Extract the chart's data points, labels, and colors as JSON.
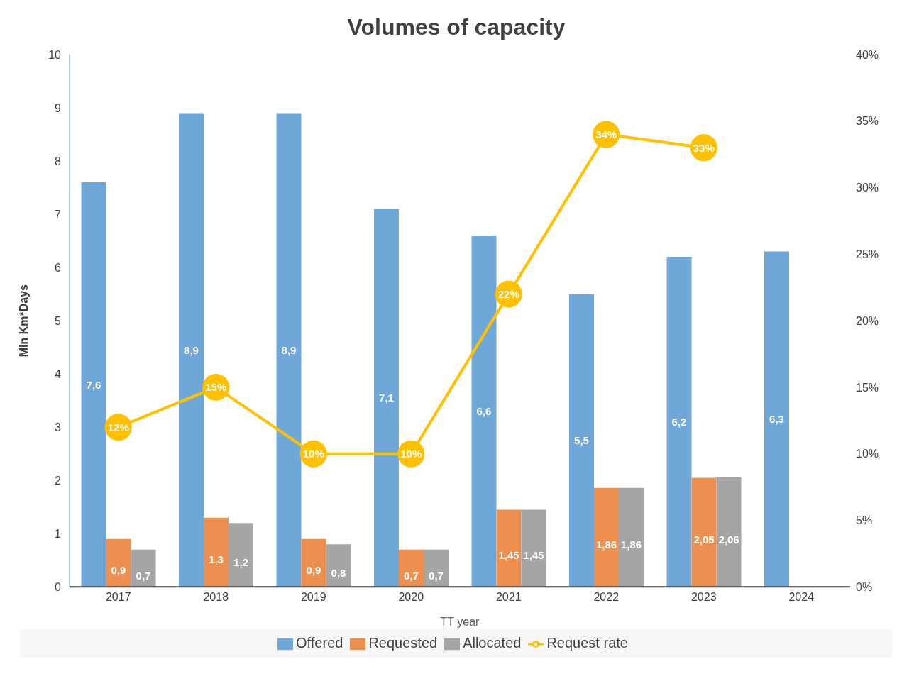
{
  "chart_data": {
    "type": "bar",
    "title": "Volumes of capacity",
    "xlabel": "TT year",
    "ylabel": "Mln Km*Days",
    "categories": [
      "2017",
      "2018",
      "2019",
      "2020",
      "2021",
      "2022",
      "2023",
      "2024"
    ],
    "series": [
      {
        "name": "Offered",
        "color": "#70a7d9",
        "values": [
          7.6,
          8.9,
          8.9,
          7.1,
          6.6,
          5.5,
          6.2,
          6.3
        ],
        "value_labels": [
          "7,6",
          "8,9",
          "8,9",
          "7,1",
          "6,6",
          "5,5",
          "6,2",
          "6,3"
        ]
      },
      {
        "name": "Requested",
        "color": "#ed8f4f",
        "values": [
          0.9,
          1.3,
          0.9,
          0.7,
          1.45,
          1.86,
          2.05,
          null
        ],
        "value_labels": [
          "0,9",
          "1,3",
          "0,9",
          "0,7",
          "1,45",
          "1,86",
          "2,05",
          null
        ]
      },
      {
        "name": "Allocated",
        "color": "#a5a5a5",
        "values": [
          0.7,
          1.2,
          0.8,
          0.7,
          1.45,
          1.86,
          2.06,
          null
        ],
        "value_labels": [
          "0,7",
          "1,2",
          "0,8",
          "0,7",
          "1,45",
          "1,86",
          "2,06",
          null
        ]
      },
      {
        "name": "Request rate",
        "type": "line",
        "axis": "y2",
        "color": "#ffc000",
        "values": [
          12,
          15,
          10,
          10,
          22,
          34,
          33,
          null
        ],
        "value_labels": [
          "12%",
          "15%",
          "10%",
          "10%",
          "22%",
          "34%",
          "33%",
          null
        ]
      }
    ],
    "ylim": [
      0,
      10
    ],
    "yticks": [
      0,
      1,
      2,
      3,
      4,
      5,
      6,
      7,
      8,
      9,
      10
    ],
    "y2lim": [
      0,
      40
    ],
    "y2ticks": [
      {
        "value": 0,
        "label": "0%"
      },
      {
        "value": 5,
        "label": "5%"
      },
      {
        "value": 10,
        "label": "10%"
      },
      {
        "value": 15,
        "label": "15%"
      },
      {
        "value": 20,
        "label": "20%"
      },
      {
        "value": 25,
        "label": "25%"
      },
      {
        "value": 30,
        "label": "30%"
      },
      {
        "value": 35,
        "label": "35%"
      },
      {
        "value": 40,
        "label": "40%"
      }
    ],
    "grid": false,
    "legend": "bottom",
    "marker": "circle"
  }
}
